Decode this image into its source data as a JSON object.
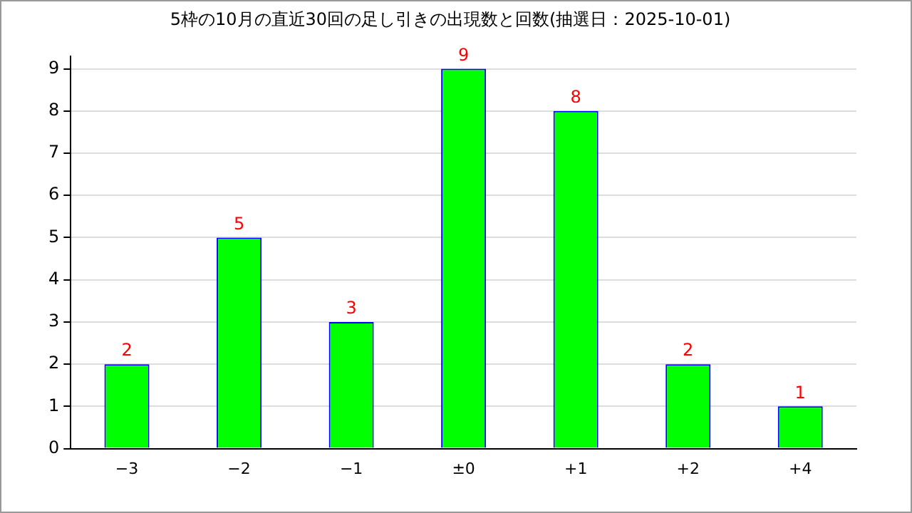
{
  "chart_data": {
    "type": "bar",
    "title": "5枠の10月の直近30回の足し引きの出現数と回数(抽選日：2025-10-01)",
    "categories": [
      "−3",
      "−2",
      "−1",
      "±0",
      "+1",
      "+2",
      "+4"
    ],
    "values": [
      2,
      5,
      3,
      9,
      8,
      2,
      1
    ],
    "color": "#00ff00",
    "ylim": [
      0,
      9.3
    ],
    "yticks": [
      0,
      1,
      2,
      3,
      4,
      5,
      6,
      7,
      8,
      9
    ],
    "grid": "y",
    "legend": false,
    "data_labels": true
  }
}
